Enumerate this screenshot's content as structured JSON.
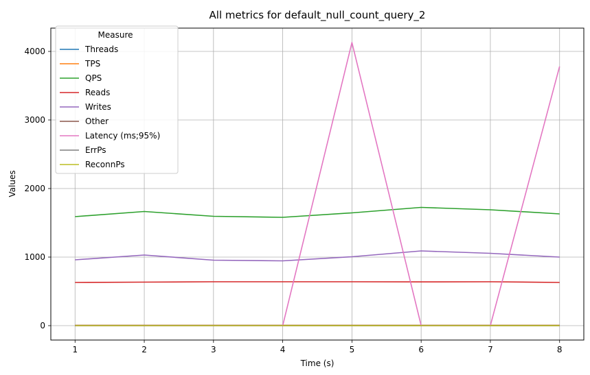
{
  "chart_data": {
    "type": "line",
    "title": "All metrics for default_null_count_query_2",
    "xlabel": "Time (s)",
    "ylabel": "Values",
    "x": [
      1,
      2,
      3,
      4,
      5,
      6,
      7,
      8
    ],
    "xticks": [
      1,
      2,
      3,
      4,
      5,
      6,
      7,
      8
    ],
    "yticks": [
      0,
      1000,
      2000,
      3000,
      4000
    ],
    "xlim": [
      0.65,
      8.35
    ],
    "ylim": [
      -210,
      4340
    ],
    "grid": true,
    "legend": {
      "title": "Measure",
      "position": "top-left"
    },
    "series": [
      {
        "name": "Threads",
        "color": "#1f77b4",
        "values": [
          4,
          4,
          4,
          4,
          4,
          4,
          4,
          4
        ]
      },
      {
        "name": "TPS",
        "color": "#ff7f0e",
        "values": [
          4,
          4,
          4,
          4,
          4,
          4,
          4,
          4
        ]
      },
      {
        "name": "QPS",
        "color": "#2ca02c",
        "values": [
          1590,
          1665,
          1595,
          1580,
          1645,
          1725,
          1690,
          1630
        ]
      },
      {
        "name": "Reads",
        "color": "#d62728",
        "values": [
          630,
          635,
          640,
          640,
          640,
          638,
          640,
          630
        ]
      },
      {
        "name": "Writes",
        "color": "#9467bd",
        "values": [
          960,
          1030,
          955,
          945,
          1005,
          1090,
          1055,
          1000
        ]
      },
      {
        "name": "Other",
        "color": "#8c564b",
        "values": [
          0,
          0,
          0,
          0,
          0,
          0,
          0,
          0
        ]
      },
      {
        "name": "Latency (ms;95%)",
        "color": "#e377c2",
        "values": [
          0,
          0,
          0,
          0,
          4130,
          0,
          0,
          3780
        ]
      },
      {
        "name": "ErrPs",
        "color": "#7f7f7f",
        "values": [
          0,
          0,
          0,
          0,
          0,
          0,
          0,
          0
        ]
      },
      {
        "name": "ReconnPs",
        "color": "#bcbd22",
        "values": [
          0,
          0,
          0,
          0,
          0,
          0,
          0,
          0
        ]
      }
    ]
  }
}
